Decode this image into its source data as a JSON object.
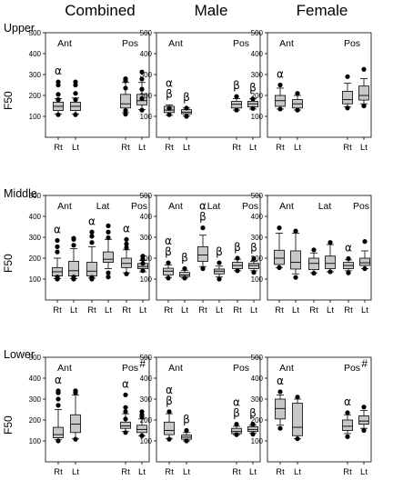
{
  "column_titles": [
    "Combined",
    "Male",
    "Female"
  ],
  "row_titles": [
    "Upper",
    "Middle",
    "Lower"
  ],
  "y_axis_label": "F50",
  "colors": {
    "box_fill": "#c8c8c8",
    "stroke": "#000000"
  },
  "chart_data": [
    {
      "type": "box",
      "region": "Upper",
      "group": "Combined",
      "ylim": [
        0,
        500
      ],
      "yticks": [
        100,
        200,
        300,
        400,
        500
      ],
      "regions": [
        "Ant",
        "Pos"
      ],
      "categories": [
        "Rt",
        "Lt",
        "Rt",
        "Lt"
      ],
      "boxes": [
        {
          "region": "Ant",
          "x": "Rt",
          "q1": 128,
          "median": 148,
          "q3": 168,
          "whisker_low": 112,
          "whisker_high": 185,
          "outliers": [
            108,
            180,
            205,
            250,
            265
          ]
        },
        {
          "region": "Ant",
          "x": "Lt",
          "q1": 128,
          "median": 148,
          "q3": 168,
          "whisker_low": 112,
          "whisker_high": 188,
          "outliers": [
            108,
            180,
            210,
            250,
            265
          ]
        },
        {
          "region": "Pos",
          "x": "Rt",
          "q1": 140,
          "median": 160,
          "q3": 205,
          "whisker_low": 118,
          "whisker_high": 262,
          "outliers": [
            110,
            128,
            235,
            270,
            280
          ]
        },
        {
          "region": "Pos",
          "x": "Lt",
          "q1": 155,
          "median": 175,
          "q3": 205,
          "whisker_low": 132,
          "whisker_high": 262,
          "outliers": [
            130,
            185,
            230,
            278,
            312
          ]
        }
      ],
      "annotations": [
        {
          "text": "α",
          "x": "Rt",
          "region": "Ant"
        }
      ]
    },
    {
      "type": "box",
      "region": "Upper",
      "group": "Male",
      "ylim": [
        0,
        500
      ],
      "yticks": [
        100,
        200,
        300,
        400,
        500
      ],
      "regions": [
        "Ant",
        "Pos"
      ],
      "categories": [
        "Rt",
        "Lt",
        "Rt",
        "Lt"
      ],
      "boxes": [
        {
          "region": "Ant",
          "x": "Rt",
          "q1": 118,
          "median": 130,
          "q3": 148,
          "whisker_low": 105,
          "whisker_high": 155,
          "outliers": [
            108,
            138
          ]
        },
        {
          "region": "Ant",
          "x": "Lt",
          "q1": 112,
          "median": 120,
          "q3": 132,
          "whisker_low": 102,
          "whisker_high": 140,
          "outliers": [
            100,
            140
          ]
        },
        {
          "region": "Pos",
          "x": "Rt",
          "q1": 140,
          "median": 158,
          "q3": 172,
          "whisker_low": 130,
          "whisker_high": 185,
          "outliers": [
            130,
            195
          ]
        },
        {
          "region": "Pos",
          "x": "Lt",
          "q1": 145,
          "median": 160,
          "q3": 172,
          "whisker_low": 135,
          "whisker_high": 185,
          "outliers": [
            138,
            183
          ]
        }
      ],
      "annotations": [
        {
          "text": "β",
          "x": "Rt",
          "region": "Ant"
        },
        {
          "text": "α",
          "x": "Rt",
          "region": "Ant"
        },
        {
          "text": "β",
          "x": "Lt",
          "region": "Ant"
        },
        {
          "text": "β",
          "x": "Rt",
          "region": "Pos"
        },
        {
          "text": "β",
          "x": "Lt",
          "region": "Pos"
        }
      ]
    },
    {
      "type": "box",
      "region": "Upper",
      "group": "Female",
      "ylim": [
        0,
        500
      ],
      "yticks": [
        100,
        200,
        300,
        400,
        500
      ],
      "regions": [
        "Ant",
        "Pos"
      ],
      "categories": [
        "Rt",
        "Lt",
        "Rt",
        "Lt"
      ],
      "boxes": [
        {
          "region": "Ant",
          "x": "Rt",
          "q1": 148,
          "median": 175,
          "q3": 200,
          "whisker_low": 135,
          "whisker_high": 235,
          "outliers": [
            135,
            250
          ]
        },
        {
          "region": "Ant",
          "x": "Lt",
          "q1": 140,
          "median": 160,
          "q3": 180,
          "whisker_low": 130,
          "whisker_high": 200,
          "outliers": [
            130,
            210
          ]
        },
        {
          "region": "Pos",
          "x": "Rt",
          "q1": 160,
          "median": 180,
          "q3": 220,
          "whisker_low": 145,
          "whisker_high": 258,
          "outliers": [
            140,
            290
          ]
        },
        {
          "region": "Pos",
          "x": "Lt",
          "q1": 178,
          "median": 200,
          "q3": 245,
          "whisker_low": 160,
          "whisker_high": 280,
          "outliers": [
            150,
            325
          ]
        }
      ],
      "annotations": [
        {
          "text": "α",
          "x": "Rt",
          "region": "Ant"
        }
      ]
    },
    {
      "type": "box",
      "region": "Middle",
      "group": "Combined",
      "ylim": [
        0,
        500
      ],
      "yticks": [
        100,
        200,
        300,
        400,
        500
      ],
      "regions": [
        "Ant",
        "Lat",
        "Pos"
      ],
      "categories": [
        "Rt",
        "Lt",
        "Rt",
        "Lt",
        "Rt",
        "Lt"
      ],
      "boxes": [
        {
          "region": "Ant",
          "x": "Rt",
          "q1": 115,
          "median": 135,
          "q3": 155,
          "whisker_low": 102,
          "whisker_high": 200,
          "outliers": [
            100,
            110,
            230,
            255,
            285
          ]
        },
        {
          "region": "Ant",
          "x": "Lt",
          "q1": 115,
          "median": 140,
          "q3": 185,
          "whisker_low": 102,
          "whisker_high": 245,
          "outliers": [
            100,
            110,
            262,
            290,
            295
          ]
        },
        {
          "region": "Lat",
          "x": "Rt",
          "q1": 115,
          "median": 138,
          "q3": 180,
          "whisker_low": 105,
          "whisker_high": 255,
          "outliers": [
            100,
            108,
            275,
            305,
            325
          ]
        },
        {
          "region": "Lat",
          "x": "Lt",
          "q1": 180,
          "median": 195,
          "q3": 230,
          "whisker_low": 150,
          "whisker_high": 290,
          "outliers": [
            110,
            130,
            298,
            325,
            355
          ]
        },
        {
          "region": "Pos",
          "x": "Rt",
          "q1": 155,
          "median": 175,
          "q3": 200,
          "whisker_low": 130,
          "whisker_high": 240,
          "outliers": [
            125,
            250,
            268,
            290
          ]
        },
        {
          "region": "Pos",
          "x": "Lt",
          "q1": 150,
          "median": 160,
          "q3": 175,
          "whisker_low": 135,
          "whisker_high": 190,
          "outliers": [
            140,
            175,
            195,
            210
          ]
        }
      ],
      "annotations": [
        {
          "text": "α",
          "x": "Rt",
          "region": "Ant"
        },
        {
          "text": "α",
          "x": "Rt",
          "region": "Lat"
        },
        {
          "text": "α",
          "x": "Rt",
          "region": "Pos"
        }
      ]
    },
    {
      "type": "box",
      "region": "Middle",
      "group": "Male",
      "ylim": [
        0,
        500
      ],
      "yticks": [
        100,
        200,
        300,
        400,
        500
      ],
      "regions": [
        "Ant",
        "Lat",
        "Pos"
      ],
      "categories": [
        "Rt",
        "Lt",
        "Rt",
        "Lt",
        "Rt",
        "Lt"
      ],
      "boxes": [
        {
          "region": "Ant",
          "x": "Rt",
          "q1": 120,
          "median": 138,
          "q3": 152,
          "whisker_low": 108,
          "whisker_high": 168,
          "outliers": [
            105,
            178
          ]
        },
        {
          "region": "Ant",
          "x": "Lt",
          "q1": 112,
          "median": 120,
          "q3": 132,
          "whisker_low": 105,
          "whisker_high": 142,
          "outliers": [
            105,
            150
          ]
        },
        {
          "region": "Lat",
          "x": "Rt",
          "q1": 185,
          "median": 215,
          "q3": 255,
          "whisker_low": 160,
          "whisker_high": 310,
          "outliers": [
            150,
            345
          ]
        },
        {
          "region": "Lat",
          "x": "Lt",
          "q1": 125,
          "median": 138,
          "q3": 148,
          "whisker_low": 110,
          "whisker_high": 162,
          "outliers": [
            100,
            178
          ]
        },
        {
          "region": "Pos",
          "x": "Rt",
          "q1": 150,
          "median": 165,
          "q3": 180,
          "whisker_low": 140,
          "whisker_high": 195,
          "outliers": [
            140,
            200
          ]
        },
        {
          "region": "Pos",
          "x": "Lt",
          "q1": 150,
          "median": 165,
          "q3": 175,
          "whisker_low": 140,
          "whisker_high": 185,
          "outliers": [
            132,
            198
          ]
        }
      ],
      "annotations": [
        {
          "text": "β",
          "x": "Rt",
          "region": "Ant"
        },
        {
          "text": "α",
          "x": "Rt",
          "region": "Ant"
        },
        {
          "text": "β",
          "x": "Lt",
          "region": "Ant"
        },
        {
          "text": "β",
          "x": "Rt",
          "region": "Lat"
        },
        {
          "text": "α",
          "x": "Rt",
          "region": "Lat"
        },
        {
          "text": "β",
          "x": "Lt",
          "region": "Lat"
        },
        {
          "text": "β",
          "x": "Rt",
          "region": "Pos"
        },
        {
          "text": "β",
          "x": "Lt",
          "region": "Pos"
        }
      ]
    },
    {
      "type": "box",
      "region": "Middle",
      "group": "Female",
      "ylim": [
        0,
        500
      ],
      "yticks": [
        100,
        200,
        300,
        400,
        500
      ],
      "regions": [
        "Ant",
        "Lat",
        "Pos"
      ],
      "categories": [
        "Rt",
        "Lt",
        "Rt",
        "Lt",
        "Rt",
        "Lt"
      ],
      "boxes": [
        {
          "region": "Ant",
          "x": "Rt",
          "q1": 170,
          "median": 200,
          "q3": 238,
          "whisker_low": 155,
          "whisker_high": 320,
          "outliers": [
            155,
            345
          ]
        },
        {
          "region": "Ant",
          "x": "Lt",
          "q1": 148,
          "median": 180,
          "q3": 235,
          "whisker_low": 125,
          "whisker_high": 320,
          "outliers": [
            108,
            330
          ]
        },
        {
          "region": "Lat",
          "x": "Rt",
          "q1": 145,
          "median": 175,
          "q3": 200,
          "whisker_low": 130,
          "whisker_high": 225,
          "outliers": [
            128,
            240
          ]
        },
        {
          "region": "Lat",
          "x": "Lt",
          "q1": 150,
          "median": 175,
          "q3": 210,
          "whisker_low": 135,
          "whisker_high": 265,
          "outliers": [
            135,
            275
          ]
        },
        {
          "region": "Pos",
          "x": "Rt",
          "q1": 150,
          "median": 165,
          "q3": 180,
          "whisker_low": 140,
          "whisker_high": 192,
          "outliers": [
            130,
            198
          ]
        },
        {
          "region": "Pos",
          "x": "Lt",
          "q1": 165,
          "median": 178,
          "q3": 200,
          "whisker_low": 150,
          "whisker_high": 235,
          "outliers": [
            150,
            280
          ]
        }
      ],
      "annotations": [
        {
          "text": "α",
          "x": "Rt",
          "region": "Pos"
        }
      ]
    },
    {
      "type": "box",
      "region": "Lower",
      "group": "Combined",
      "ylim": [
        0,
        500
      ],
      "yticks": [
        100,
        200,
        300,
        400,
        500
      ],
      "regions": [
        "Ant",
        "Pos"
      ],
      "categories": [
        "Rt",
        "Lt",
        "Rt",
        "Lt"
      ],
      "boxes": [
        {
          "region": "Ant",
          "x": "Rt",
          "q1": 115,
          "median": 130,
          "q3": 165,
          "whisker_low": 105,
          "whisker_high": 250,
          "outliers": [
            100,
            270,
            300,
            330,
            340
          ]
        },
        {
          "region": "Ant",
          "x": "Lt",
          "q1": 140,
          "median": 180,
          "q3": 225,
          "whisker_low": 110,
          "whisker_high": 320,
          "outliers": [
            108,
            330,
            340
          ]
        },
        {
          "region": "Pos",
          "x": "Rt",
          "q1": 160,
          "median": 172,
          "q3": 190,
          "whisker_low": 145,
          "whisker_high": 230,
          "outliers": [
            140,
            205,
            240,
            260,
            320
          ]
        },
        {
          "region": "Pos",
          "x": "Lt",
          "q1": 140,
          "median": 155,
          "q3": 175,
          "whisker_low": 125,
          "whisker_high": 205,
          "outliers": [
            125,
            215,
            225,
            240
          ]
        }
      ],
      "annotations": [
        {
          "text": "α",
          "x": "Rt",
          "region": "Ant"
        },
        {
          "text": "α",
          "x": "Rt",
          "region": "Pos"
        },
        {
          "text": "#",
          "corner": "top-right"
        }
      ]
    },
    {
      "type": "box",
      "region": "Lower",
      "group": "Male",
      "ylim": [
        0,
        500
      ],
      "yticks": [
        100,
        200,
        300,
        400,
        500
      ],
      "regions": [
        "Ant",
        "Pos"
      ],
      "categories": [
        "Rt",
        "Lt",
        "Rt",
        "Lt"
      ],
      "boxes": [
        {
          "region": "Ant",
          "x": "Rt",
          "q1": 130,
          "median": 150,
          "q3": 190,
          "whisker_low": 112,
          "whisker_high": 230,
          "outliers": [
            108,
            240
          ]
        },
        {
          "region": "Ant",
          "x": "Lt",
          "q1": 108,
          "median": 118,
          "q3": 128,
          "whisker_low": 100,
          "whisker_high": 140,
          "outliers": [
            100,
            150
          ]
        },
        {
          "region": "Pos",
          "x": "Rt",
          "q1": 135,
          "median": 145,
          "q3": 160,
          "whisker_low": 130,
          "whisker_high": 170,
          "outliers": [
            130,
            180
          ]
        },
        {
          "region": "Pos",
          "x": "Lt",
          "q1": 145,
          "median": 155,
          "q3": 168,
          "whisker_low": 138,
          "whisker_high": 175,
          "outliers": [
            132,
            180
          ]
        }
      ],
      "annotations": [
        {
          "text": "β",
          "x": "Rt",
          "region": "Ant"
        },
        {
          "text": "α",
          "x": "Rt",
          "region": "Ant"
        },
        {
          "text": "β",
          "x": "Lt",
          "region": "Ant"
        },
        {
          "text": "β",
          "x": "Rt",
          "region": "Pos"
        },
        {
          "text": "α",
          "x": "Rt",
          "region": "Pos"
        },
        {
          "text": "β",
          "x": "Lt",
          "region": "Pos"
        }
      ]
    },
    {
      "type": "box",
      "region": "Lower",
      "group": "Female",
      "ylim": [
        0,
        500
      ],
      "yticks": [
        100,
        200,
        300,
        400,
        500
      ],
      "regions": [
        "Ant",
        "Pos"
      ],
      "categories": [
        "Rt",
        "Lt",
        "Rt",
        "Lt"
      ],
      "boxes": [
        {
          "region": "Ant",
          "x": "Rt",
          "q1": 205,
          "median": 255,
          "q3": 300,
          "whisker_low": 175,
          "whisker_high": 320,
          "outliers": [
            160,
            335
          ]
        },
        {
          "region": "Ant",
          "x": "Lt",
          "q1": 125,
          "median": 165,
          "q3": 280,
          "whisker_low": 110,
          "whisker_high": 300,
          "outliers": [
            110,
            310
          ]
        },
        {
          "region": "Pos",
          "x": "Rt",
          "q1": 150,
          "median": 170,
          "q3": 200,
          "whisker_low": 135,
          "whisker_high": 225,
          "outliers": [
            120,
            235
          ]
        },
        {
          "region": "Pos",
          "x": "Lt",
          "q1": 180,
          "median": 195,
          "q3": 220,
          "whisker_low": 160,
          "whisker_high": 245,
          "outliers": [
            150,
            262
          ]
        }
      ],
      "annotations": [
        {
          "text": "α",
          "x": "Rt",
          "region": "Ant"
        },
        {
          "text": "α",
          "x": "Rt",
          "region": "Pos"
        },
        {
          "text": "#",
          "corner": "top-right"
        }
      ]
    }
  ]
}
